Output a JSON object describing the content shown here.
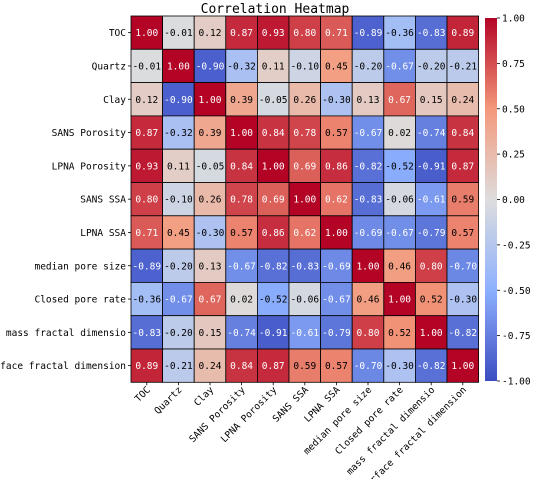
{
  "chart_data": {
    "type": "heatmap",
    "title": "Correlation Heatmap",
    "xlabel": "",
    "ylabel": "",
    "labels": [
      "TOC",
      "Quartz",
      "Clay",
      "SANS Porosity",
      "LPNA Porosity",
      "SANS SSA",
      "LPNA SSA",
      "median pore size",
      "Closed pore rate",
      "mass fractal dimensio",
      "surface fractal dimension"
    ],
    "x_tick_labels": [
      "TOC",
      "Quartz",
      "Clay",
      "SANS Porosity",
      "LPNA Porosity",
      "SANS SSA",
      "LPNA SSA",
      "median pore size",
      "Closed pore rate",
      "mass fractal dimensio",
      "surface fractal dimension"
    ],
    "y_tick_labels": [
      "TOC",
      "Quartz",
      "Clay",
      "SANS Porosity",
      "LPNA Porosity",
      "SANS SSA",
      "LPNA SSA",
      "median pore size",
      "Closed pore rate",
      "mass fractal dimensio",
      "surface fractal dimension"
    ],
    "values": [
      [
        1.0,
        -0.01,
        0.12,
        0.87,
        0.93,
        0.8,
        0.71,
        -0.89,
        -0.36,
        -0.83,
        0.89
      ],
      [
        -0.01,
        1.0,
        -0.9,
        -0.32,
        0.11,
        -0.1,
        0.45,
        -0.2,
        -0.67,
        -0.2,
        -0.21
      ],
      [
        0.12,
        -0.9,
        1.0,
        0.39,
        -0.05,
        0.26,
        -0.3,
        0.13,
        0.67,
        0.15,
        0.24
      ],
      [
        0.87,
        -0.32,
        0.39,
        1.0,
        0.84,
        0.78,
        0.57,
        -0.67,
        0.02,
        -0.74,
        0.84
      ],
      [
        0.93,
        0.11,
        -0.05,
        0.84,
        1.0,
        0.69,
        0.86,
        -0.82,
        -0.52,
        -0.91,
        0.87
      ],
      [
        0.8,
        -0.1,
        0.26,
        0.78,
        0.69,
        1.0,
        0.62,
        -0.83,
        -0.06,
        -0.61,
        0.59
      ],
      [
        0.71,
        0.45,
        -0.3,
        0.57,
        0.86,
        0.62,
        1.0,
        -0.69,
        -0.67,
        -0.79,
        0.57
      ],
      [
        -0.89,
        -0.2,
        0.13,
        -0.67,
        -0.82,
        -0.83,
        -0.69,
        1.0,
        0.46,
        0.8,
        -0.7
      ],
      [
        -0.36,
        -0.67,
        0.67,
        0.02,
        -0.52,
        -0.06,
        -0.67,
        0.46,
        1.0,
        0.52,
        -0.3
      ],
      [
        -0.83,
        -0.2,
        0.15,
        -0.74,
        -0.91,
        -0.61,
        -0.79,
        0.8,
        0.52,
        1.0,
        -0.82
      ],
      [
        0.89,
        -0.21,
        0.24,
        0.84,
        0.87,
        0.59,
        0.57,
        -0.7,
        -0.3,
        -0.82,
        1.0
      ]
    ],
    "vmin": -1.0,
    "vmax": 1.0,
    "colormap": "coolwarm",
    "colorbar_ticks": [
      "1.00",
      "0.75",
      "0.50",
      "0.25",
      "0.00",
      "-0.25",
      "-0.50",
      "-0.75",
      "-1.00"
    ],
    "colorbar_tick_values": [
      1.0,
      0.75,
      0.5,
      0.25,
      0.0,
      -0.25,
      -0.5,
      -0.75,
      -1.0
    ],
    "cell_gridlines": true,
    "grid_color": "#000000",
    "legend": "colorbar-right"
  }
}
